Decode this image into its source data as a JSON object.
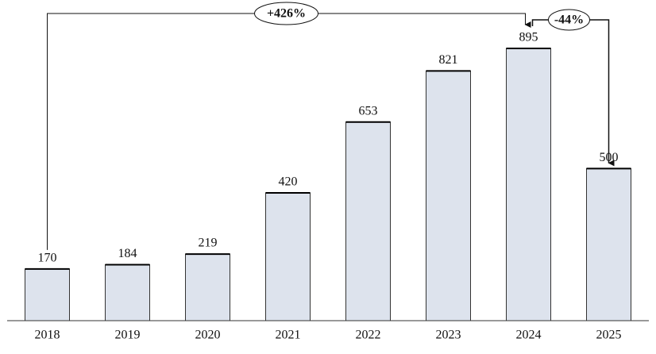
{
  "chart_data": {
    "type": "bar",
    "categories": [
      "2018",
      "2019",
      "2020",
      "2021",
      "2022",
      "2023",
      "2024",
      "2025"
    ],
    "values": [
      170,
      184,
      219,
      420,
      653,
      821,
      895,
      500
    ],
    "color": "#dde3ed",
    "annotations": [
      {
        "text": "+426%"
      },
      {
        "text": "-44%"
      }
    ]
  }
}
